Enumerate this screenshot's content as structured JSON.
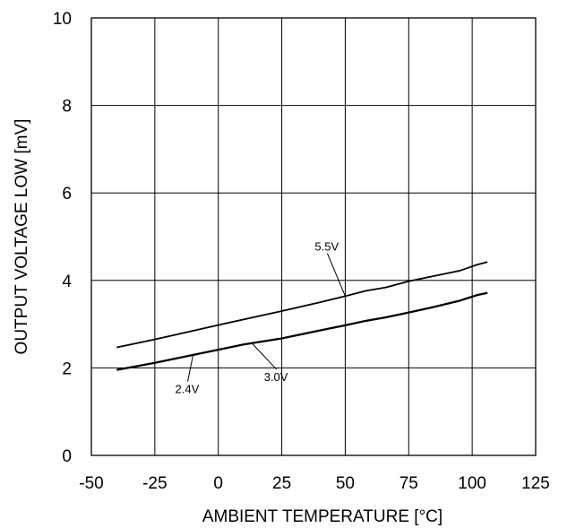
{
  "chart_data": {
    "type": "line",
    "title": "",
    "xlabel": "AMBIENT TEMPERATURE [°C]",
    "ylabel": "OUTPUT VOLTAGE LOW [mV]",
    "xlim": [
      -50,
      125
    ],
    "ylim": [
      0,
      10
    ],
    "xticks": [
      -50,
      -25,
      0,
      25,
      50,
      75,
      100,
      125
    ],
    "yticks": [
      0,
      2,
      4,
      6,
      8,
      10
    ],
    "x_tick_labels": [
      "-50",
      "-25",
      "0",
      "25",
      "50",
      "75",
      "100",
      "125"
    ],
    "y_tick_labels": [
      "0",
      "2",
      "4",
      "6",
      "8",
      "10"
    ],
    "grid": true,
    "legend": "none",
    "line_color": "#000000",
    "series": [
      {
        "label": "5.5V",
        "x": [
          -40,
          -25,
          0,
          25,
          40,
          50,
          58,
          66,
          75,
          85,
          95,
          102,
          106
        ],
        "y": [
          2.47,
          2.65,
          2.98,
          3.3,
          3.5,
          3.64,
          3.76,
          3.84,
          3.98,
          4.1,
          4.22,
          4.36,
          4.42
        ]
      },
      {
        "label": "3.0V",
        "x": [
          -40,
          -25,
          0,
          10,
          25,
          40,
          50,
          58,
          66,
          75,
          85,
          95,
          102,
          106
        ],
        "y": [
          1.96,
          2.12,
          2.42,
          2.54,
          2.68,
          2.86,
          2.98,
          3.08,
          3.16,
          3.27,
          3.4,
          3.54,
          3.67,
          3.72
        ]
      },
      {
        "label": "2.4V",
        "x": [
          -40,
          -25,
          0,
          10,
          25,
          40,
          50,
          58,
          66,
          75,
          85,
          95,
          102,
          106
        ],
        "y": [
          1.95,
          2.11,
          2.41,
          2.53,
          2.67,
          2.85,
          2.97,
          3.07,
          3.15,
          3.26,
          3.39,
          3.53,
          3.66,
          3.71
        ]
      }
    ],
    "annotations": [
      {
        "text": "5.5V",
        "point_x": 50,
        "point_y": 3.64,
        "label_x": 38,
        "label_y": 4.68
      },
      {
        "text": "3.0V",
        "point_x": 13,
        "point_y": 2.58,
        "label_x": 18,
        "label_y": 1.7
      },
      {
        "text": "2.4V",
        "point_x": -10,
        "point_y": 2.28,
        "label_x": -17,
        "label_y": 1.42
      }
    ]
  }
}
